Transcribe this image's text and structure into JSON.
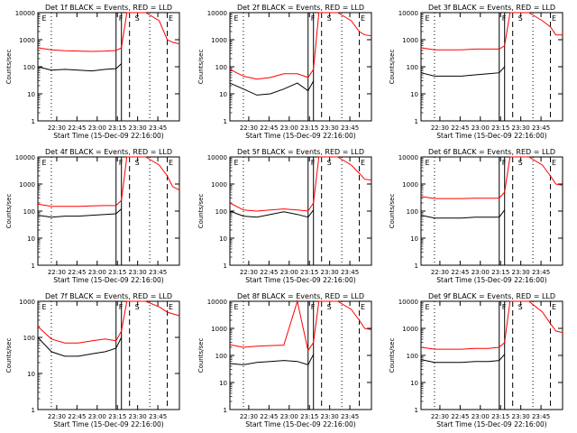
{
  "colors": {
    "events": "#000000",
    "lld": "#ff0000",
    "axes": "#000000"
  },
  "common": {
    "xlabel": "Start Time (15-Dec-09 22:16:00)",
    "ylabel": "Counts/sec",
    "xticks": [
      "22:30",
      "22:45",
      "23:00",
      "23:15",
      "23:30",
      "23:45"
    ],
    "yticks": [
      "1",
      "10",
      "100",
      "1000",
      "10000"
    ],
    "markers": [
      "E",
      "F",
      "S",
      "E"
    ]
  },
  "chart_data": [
    {
      "type": "line",
      "title": "Det 1f BLACK = Events, RED = LLD",
      "x_unit": "minutes after 22:16:00",
      "xlim": [
        0,
        105
      ],
      "ylim": [
        1,
        10000
      ],
      "yscale": "log",
      "grid": false,
      "x": [
        0,
        10,
        20,
        30,
        40,
        50,
        58,
        62,
        66,
        70,
        75,
        80,
        90,
        96,
        100,
        105
      ],
      "series": [
        {
          "name": "Events",
          "color": "#000000",
          "values": [
            100,
            75,
            80,
            75,
            70,
            80,
            85,
            130,
            null,
            null,
            null,
            null,
            null,
            null,
            null,
            null
          ]
        },
        {
          "name": "LLD",
          "color": "#ff0000",
          "values": [
            500,
            420,
            390,
            380,
            370,
            380,
            400,
            500,
            10000,
            10000,
            10000,
            10000,
            5000,
            1000,
            800,
            700
          ]
        }
      ]
    },
    {
      "type": "line",
      "title": "Det 2f BLACK = Events, RED = LLD",
      "x_unit": "minutes after 22:16:00",
      "xlim": [
        0,
        105
      ],
      "ylim": [
        1,
        10000
      ],
      "yscale": "log",
      "grid": false,
      "x": [
        0,
        10,
        20,
        30,
        40,
        50,
        58,
        62,
        66,
        70,
        75,
        80,
        90,
        96,
        100,
        105
      ],
      "series": [
        {
          "name": "Events",
          "color": "#000000",
          "values": [
            25,
            15,
            9,
            10,
            15,
            25,
            13,
            30,
            null,
            null,
            null,
            null,
            null,
            null,
            null,
            null
          ]
        },
        {
          "name": "LLD",
          "color": "#ff0000",
          "values": [
            80,
            45,
            35,
            40,
            55,
            55,
            40,
            80,
            10000,
            10000,
            10000,
            10000,
            5000,
            2000,
            1500,
            1400
          ]
        }
      ]
    },
    {
      "type": "line",
      "title": "Det 3f BLACK = Events, RED = LLD",
      "x_unit": "minutes after 22:16:00",
      "xlim": [
        0,
        105
      ],
      "ylim": [
        1,
        10000
      ],
      "yscale": "log",
      "grid": false,
      "x": [
        0,
        10,
        20,
        30,
        40,
        50,
        58,
        62,
        66,
        70,
        75,
        80,
        90,
        96,
        100,
        105
      ],
      "series": [
        {
          "name": "Events",
          "color": "#000000",
          "values": [
            60,
            45,
            45,
            45,
            50,
            55,
            60,
            100,
            null,
            null,
            null,
            null,
            null,
            null,
            null,
            null
          ]
        },
        {
          "name": "LLD",
          "color": "#ff0000",
          "values": [
            500,
            420,
            420,
            420,
            450,
            450,
            450,
            600,
            10000,
            10000,
            10000,
            10000,
            5000,
            3000,
            1500,
            1500
          ]
        }
      ]
    },
    {
      "type": "line",
      "title": "Det 4f BLACK = Events, RED = LLD",
      "x_unit": "minutes after 22:16:00",
      "xlim": [
        0,
        105
      ],
      "ylim": [
        1,
        10000
      ],
      "yscale": "log",
      "grid": false,
      "x": [
        0,
        10,
        20,
        30,
        40,
        50,
        58,
        62,
        66,
        70,
        75,
        80,
        90,
        96,
        100,
        105
      ],
      "series": [
        {
          "name": "Events",
          "color": "#000000",
          "values": [
            70,
            60,
            65,
            65,
            70,
            75,
            80,
            120,
            null,
            null,
            null,
            null,
            null,
            null,
            null,
            null
          ]
        },
        {
          "name": "LLD",
          "color": "#ff0000",
          "values": [
            180,
            150,
            150,
            150,
            155,
            160,
            160,
            250,
            10000,
            10000,
            10000,
            10000,
            5000,
            2000,
            800,
            600
          ]
        }
      ]
    },
    {
      "type": "line",
      "title": "Det 5f BLACK = Events, RED = LLD",
      "x_unit": "minutes after 22:16:00",
      "xlim": [
        0,
        105
      ],
      "ylim": [
        1,
        10000
      ],
      "yscale": "log",
      "grid": false,
      "x": [
        0,
        10,
        20,
        30,
        40,
        50,
        58,
        62,
        66,
        70,
        75,
        80,
        90,
        96,
        100,
        105
      ],
      "series": [
        {
          "name": "Events",
          "color": "#000000",
          "values": [
            100,
            65,
            60,
            75,
            95,
            75,
            60,
            110,
            null,
            null,
            null,
            null,
            null,
            null,
            null,
            null
          ]
        },
        {
          "name": "LLD",
          "color": "#ff0000",
          "values": [
            200,
            110,
            100,
            110,
            120,
            110,
            100,
            200,
            10000,
            10000,
            10000,
            10000,
            5000,
            2500,
            1500,
            1400
          ]
        }
      ]
    },
    {
      "type": "line",
      "title": "Det 6f BLACK = Events, RED = LLD",
      "x_unit": "minutes after 22:16:00",
      "xlim": [
        0,
        105
      ],
      "ylim": [
        1,
        10000
      ],
      "yscale": "log",
      "grid": false,
      "x": [
        0,
        10,
        20,
        30,
        40,
        50,
        58,
        62,
        66,
        70,
        75,
        80,
        90,
        96,
        100,
        105
      ],
      "series": [
        {
          "name": "Events",
          "color": "#000000",
          "values": [
            70,
            55,
            55,
            55,
            60,
            60,
            60,
            110,
            null,
            null,
            null,
            null,
            null,
            null,
            null,
            null
          ]
        },
        {
          "name": "LLD",
          "color": "#ff0000",
          "values": [
            350,
            290,
            290,
            290,
            300,
            300,
            300,
            500,
            10000,
            10000,
            10000,
            10000,
            5000,
            2000,
            1000,
            900
          ]
        }
      ]
    },
    {
      "type": "line",
      "title": "Det 7f BLACK = Events, RED = LLD",
      "x_unit": "minutes after 22:16:00",
      "xlim": [
        0,
        105
      ],
      "ylim": [
        1,
        1000
      ],
      "yscale": "log",
      "grid": false,
      "x": [
        0,
        10,
        20,
        30,
        40,
        50,
        58,
        62,
        66,
        70,
        75,
        80,
        90,
        96,
        100,
        105
      ],
      "series": [
        {
          "name": "Events",
          "color": "#000000",
          "values": [
            100,
            40,
            30,
            30,
            35,
            40,
            50,
            100,
            null,
            null,
            null,
            null,
            null,
            null,
            null,
            null
          ]
        },
        {
          "name": "LLD",
          "color": "#ff0000",
          "values": [
            200,
            90,
            70,
            70,
            80,
            90,
            80,
            150,
            1000,
            1000,
            1000,
            1000,
            700,
            500,
            450,
            400
          ]
        }
      ]
    },
    {
      "type": "line",
      "title": "Det 8f BLACK = Events, RED = LLD",
      "x_unit": "minutes after 22:16:00",
      "xlim": [
        0,
        105
      ],
      "ylim": [
        1,
        10000
      ],
      "yscale": "log",
      "grid": false,
      "x": [
        0,
        10,
        20,
        30,
        40,
        50,
        58,
        62,
        66,
        70,
        75,
        80,
        90,
        96,
        100,
        105
      ],
      "series": [
        {
          "name": "Events",
          "color": "#000000",
          "values": [
            50,
            45,
            55,
            60,
            65,
            60,
            45,
            110,
            null,
            null,
            null,
            null,
            null,
            null,
            null,
            null
          ]
        },
        {
          "name": "LLD",
          "color": "#ff0000",
          "values": [
            250,
            200,
            220,
            230,
            240,
            10000,
            150,
            300,
            10000,
            10000,
            10000,
            10000,
            5000,
            2000,
            1000,
            900
          ]
        }
      ]
    },
    {
      "type": "line",
      "title": "Det 9f BLACK = Events, RED = LLD",
      "x_unit": "minutes after 22:16:00",
      "xlim": [
        0,
        105
      ],
      "ylim": [
        1,
        10000
      ],
      "yscale": "log",
      "grid": false,
      "x": [
        0,
        10,
        20,
        30,
        40,
        50,
        58,
        62,
        66,
        70,
        75,
        80,
        90,
        96,
        100,
        105
      ],
      "series": [
        {
          "name": "Events",
          "color": "#000000",
          "values": [
            70,
            55,
            55,
            55,
            60,
            60,
            65,
            110,
            null,
            null,
            null,
            null,
            null,
            null,
            null,
            null
          ]
        },
        {
          "name": "LLD",
          "color": "#ff0000",
          "values": [
            200,
            170,
            170,
            170,
            180,
            180,
            200,
            300,
            10000,
            10000,
            10000,
            10000,
            4000,
            1500,
            800,
            700
          ]
        }
      ]
    }
  ],
  "panel_yticks": [
    [
      "1",
      "10",
      "100",
      "1000",
      "10000"
    ],
    [
      "1",
      "10",
      "100",
      "1000",
      "10000"
    ],
    [
      "1",
      "10",
      "100",
      "1000",
      "10000"
    ],
    [
      "1",
      "10",
      "100",
      "1000",
      "10000"
    ],
    [
      "1",
      "10",
      "100",
      "1000",
      "10000"
    ],
    [
      "1",
      "10",
      "100",
      "1000",
      "10000"
    ],
    [
      "1",
      "10",
      "100",
      "1000"
    ],
    [
      "1",
      "10",
      "100",
      "1000",
      "10000"
    ],
    [
      "1",
      "10",
      "100",
      "1000",
      "10000"
    ]
  ]
}
